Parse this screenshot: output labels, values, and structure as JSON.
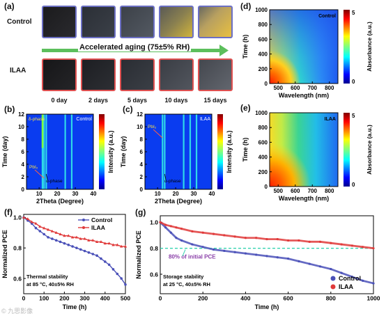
{
  "panel_a": {
    "label": "(a)",
    "row_control": "Control",
    "row_ilaa": "ILAA",
    "aging_text": "Accelerated aging (75±5% RH)",
    "days": [
      "0 day",
      "2 days",
      "5 days",
      "10 days",
      "15 days"
    ],
    "colors": {
      "control_border": "#6b6fc4",
      "ilaa_border": "#e05050",
      "arrow": "#5cbf5c"
    }
  },
  "panel_b": {
    "label": "(b)",
    "tag": "Control",
    "annot_pb": "PbI₂",
    "annot_delta": "δ-phase",
    "annot_alpha": "α-phase"
  },
  "panel_c": {
    "label": "(c)",
    "tag": "ILAA",
    "annot_pb": "PbI₂",
    "annot_alpha": "α-phase"
  },
  "panel_d": {
    "label": "(d)",
    "tag": "Control"
  },
  "panel_e": {
    "label": "(e)",
    "tag": "ILAA"
  },
  "panel_f": {
    "label": "(f)",
    "note1": "Thermal stability",
    "note2": "at 85 °C, 40±5% RH"
  },
  "panel_g": {
    "label": "(g)",
    "note1": "Storage stability",
    "note2": "at 25 °C, 40±5% RH",
    "annot": "80% of initial PCE"
  },
  "watermark": "© 九思影像",
  "chart_data": [
    {
      "type": "heatmap",
      "id": "b",
      "xlabel": "2Theta (Degree)",
      "ylabel": "Time (day)",
      "colorbar_label": "Intensity (a.u.)",
      "xlim": [
        3,
        40
      ],
      "ylim": [
        0,
        12
      ],
      "xticks": [
        10,
        20,
        30,
        40
      ],
      "yticks": [
        0,
        2,
        4,
        6,
        8,
        10,
        12
      ],
      "peak_lines": [
        11.8,
        12.7,
        13.9,
        24.4,
        28.0
      ]
    },
    {
      "type": "heatmap",
      "id": "c",
      "xlabel": "2Theta (Degree)",
      "ylabel": "Time (day)",
      "colorbar_label": "Intensity (a.u.)",
      "xlim": [
        3,
        40
      ],
      "ylim": [
        0,
        12
      ],
      "xticks": [
        10,
        20,
        30,
        40
      ],
      "yticks": [
        0,
        2,
        4,
        6,
        8,
        10,
        12
      ],
      "peak_lines": [
        12.7,
        13.9,
        24.4,
        28.0,
        31.5
      ]
    },
    {
      "type": "heatmap",
      "id": "d",
      "xlabel": "Wavelength (nm)",
      "ylabel": "Time (h)",
      "colorbar_label": "Absorbance (a.u.)",
      "xlim": [
        450,
        850
      ],
      "ylim": [
        0,
        1000
      ],
      "xticks": [
        500,
        600,
        700,
        800
      ],
      "yticks": [
        0,
        200,
        400,
        600,
        800,
        1000
      ],
      "cbar_ticks": [
        0,
        5
      ]
    },
    {
      "type": "heatmap",
      "id": "e",
      "xlabel": "Wavelength (nm)",
      "ylabel": "Time (h)",
      "colorbar_label": "Absorbance (a.u.)",
      "xlim": [
        450,
        850
      ],
      "ylim": [
        0,
        1000
      ],
      "xticks": [
        500,
        600,
        700,
        800
      ],
      "yticks": [
        0,
        200,
        400,
        600,
        800,
        1000
      ],
      "cbar_ticks": [
        0,
        5
      ]
    },
    {
      "type": "line",
      "id": "f",
      "xlabel": "Time (h)",
      "ylabel": "Normalized PCE",
      "xlim": [
        0,
        500
      ],
      "ylim": [
        0.5,
        1.02
      ],
      "xticks": [
        0,
        100,
        200,
        300,
        400,
        500
      ],
      "yticks": [
        0.6,
        0.8,
        1.0
      ],
      "legend": "top-right",
      "series": [
        {
          "name": "Control",
          "color": "#4a50b8",
          "x": [
            0,
            20,
            40,
            60,
            80,
            100,
            120,
            140,
            160,
            180,
            200,
            220,
            240,
            260,
            280,
            300,
            320,
            340,
            360,
            380,
            400,
            420,
            440,
            460,
            480,
            500
          ],
          "y": [
            1.0,
            0.98,
            0.96,
            0.93,
            0.91,
            0.89,
            0.87,
            0.86,
            0.85,
            0.84,
            0.83,
            0.82,
            0.81,
            0.8,
            0.79,
            0.78,
            0.77,
            0.76,
            0.75,
            0.73,
            0.71,
            0.69,
            0.66,
            0.63,
            0.6,
            0.56
          ]
        },
        {
          "name": "ILAA",
          "color": "#e03a3a",
          "x": [
            0,
            20,
            40,
            60,
            80,
            100,
            120,
            140,
            160,
            180,
            200,
            220,
            240,
            260,
            280,
            300,
            320,
            340,
            360,
            380,
            400,
            420,
            440,
            460,
            480,
            500
          ],
          "y": [
            1.0,
            0.99,
            0.97,
            0.96,
            0.94,
            0.93,
            0.92,
            0.91,
            0.9,
            0.89,
            0.88,
            0.88,
            0.87,
            0.87,
            0.86,
            0.86,
            0.85,
            0.85,
            0.84,
            0.84,
            0.83,
            0.83,
            0.82,
            0.82,
            0.81,
            0.81
          ]
        }
      ]
    },
    {
      "type": "scatter",
      "id": "g",
      "xlabel": "Time (h)",
      "ylabel": "Normalized PCE",
      "xlim": [
        0,
        1000
      ],
      "ylim": [
        0.45,
        1.05
      ],
      "xticks": [
        0,
        200,
        400,
        600,
        800,
        1000
      ],
      "yticks": [
        0.6,
        0.8,
        1.0
      ],
      "legend": "bottom-right",
      "reference_line": 0.8,
      "series": [
        {
          "name": "Control",
          "color": "#4a50b8",
          "x": [
            0,
            25,
            50,
            75,
            100,
            150,
            200,
            250,
            300,
            350,
            400,
            450,
            500,
            550,
            600,
            650,
            700,
            750,
            800,
            850,
            900,
            950,
            1000
          ],
          "y": [
            1.0,
            0.96,
            0.92,
            0.88,
            0.86,
            0.83,
            0.81,
            0.79,
            0.78,
            0.77,
            0.76,
            0.75,
            0.74,
            0.73,
            0.72,
            0.7,
            0.68,
            0.66,
            0.64,
            0.61,
            0.58,
            0.55,
            0.53
          ]
        },
        {
          "name": "ILAA",
          "color": "#e03a3a",
          "x": [
            0,
            25,
            50,
            75,
            100,
            150,
            200,
            250,
            300,
            350,
            400,
            450,
            500,
            550,
            600,
            650,
            700,
            750,
            800,
            850,
            900,
            950,
            1000
          ],
          "y": [
            1.0,
            0.98,
            0.97,
            0.96,
            0.95,
            0.93,
            0.92,
            0.91,
            0.9,
            0.89,
            0.88,
            0.88,
            0.87,
            0.87,
            0.86,
            0.86,
            0.85,
            0.85,
            0.84,
            0.83,
            0.82,
            0.81,
            0.8
          ]
        }
      ]
    }
  ]
}
